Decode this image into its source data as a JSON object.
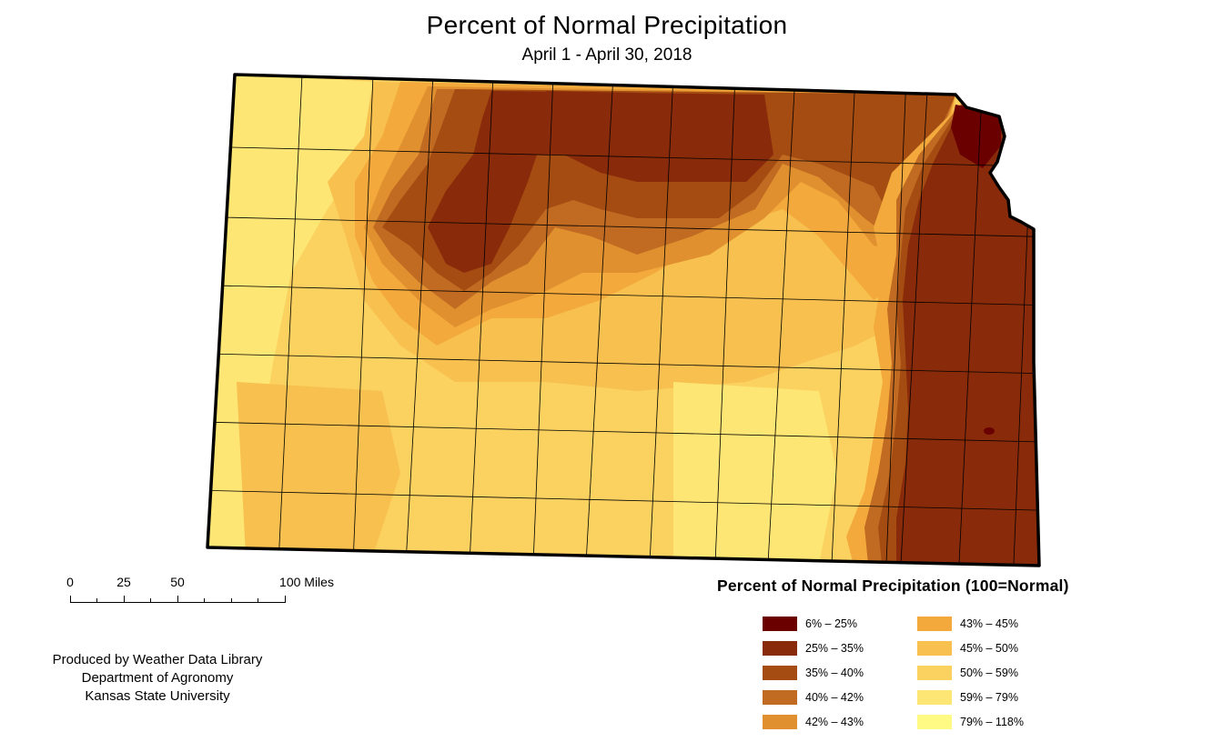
{
  "title": "Percent of  Normal  Precipitation",
  "subtitle": "April 1 - April 30, 2018",
  "scale_bar": {
    "labels": [
      "0",
      "25",
      "50",
      "100 Miles"
    ]
  },
  "credits": [
    "Produced by Weather Data Library",
    "Department of Agronomy",
    "Kansas State University"
  ],
  "legend": {
    "title": "Percent of Normal Precipitation (100=Normal)",
    "items": [
      {
        "label": "6% – 25%",
        "color": "#6b0000"
      },
      {
        "label": "25% – 35%",
        "color": "#892b0a"
      },
      {
        "label": "35% – 40%",
        "color": "#a44c12"
      },
      {
        "label": "40% – 42%",
        "color": "#c06a22"
      },
      {
        "label": "42% – 43%",
        "color": "#e0902e"
      },
      {
        "label": "43% – 45%",
        "color": "#f3a93b"
      },
      {
        "label": "45% – 50%",
        "color": "#f7c04f"
      },
      {
        "label": "50% – 59%",
        "color": "#fbd160"
      },
      {
        "label": "59% – 79%",
        "color": "#fde673"
      },
      {
        "label": "79% – 118%",
        "color": "#fefa84"
      }
    ]
  },
  "map": {
    "region": "Kansas",
    "outline_color": "#000000"
  }
}
